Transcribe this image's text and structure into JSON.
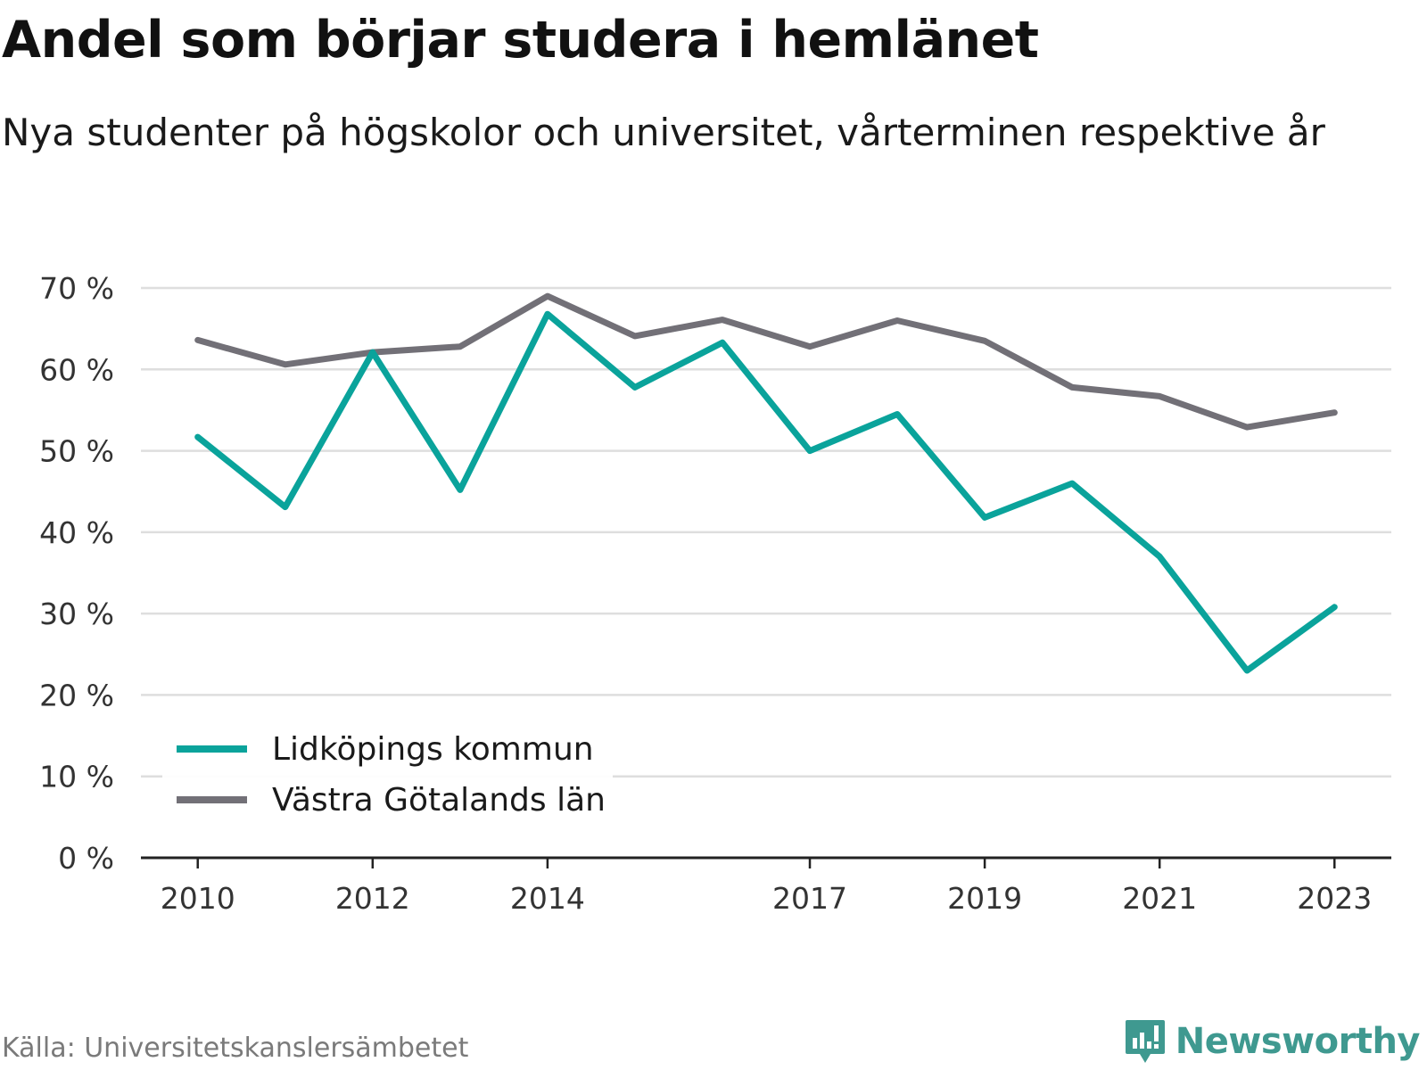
{
  "title": "Andel som börjar studera i hemlänet",
  "subtitle": "Nya studenter på högskolor och universitet, vårterminen respektive år",
  "source": "Källa: Universitetskanslersämbetet",
  "brand": {
    "name": "Newsworthy",
    "icon": "newsworthy-logo-icon",
    "color": "#3f9990"
  },
  "chart_data": {
    "type": "line",
    "x": [
      2010,
      2011,
      2012,
      2013,
      2014,
      2015,
      2016,
      2017,
      2018,
      2019,
      2020,
      2021,
      2022,
      2023
    ],
    "x_tick_labels": [
      "2010",
      "2012",
      "2014",
      "2017",
      "2019",
      "2021",
      "2023"
    ],
    "x_tick_values": [
      2010,
      2012,
      2014,
      2017,
      2019,
      2021,
      2023
    ],
    "y_tick_labels": [
      "0 %",
      "10 %",
      "20 %",
      "30 %",
      "40 %",
      "50 %",
      "60 %",
      "70 %"
    ],
    "y_tick_values": [
      0,
      10,
      20,
      30,
      40,
      50,
      60,
      70
    ],
    "ylim": [
      0,
      70
    ],
    "xlim": [
      2009.35,
      2023.65
    ],
    "grid": true,
    "legend_position": "bottom-left",
    "series": [
      {
        "name": "Lidköpings kommun",
        "color": "#0aa39b",
        "values": [
          51.7,
          43.1,
          62.1,
          45.2,
          66.8,
          57.8,
          63.3,
          50.0,
          54.5,
          41.8,
          46.0,
          37.0,
          23.0,
          30.8
        ]
      },
      {
        "name": "Västra Götalands län",
        "color": "#727077",
        "values": [
          63.6,
          60.6,
          62.1,
          62.8,
          69.0,
          64.1,
          66.1,
          62.8,
          66.0,
          63.5,
          57.8,
          56.7,
          52.9,
          54.7
        ]
      }
    ]
  }
}
